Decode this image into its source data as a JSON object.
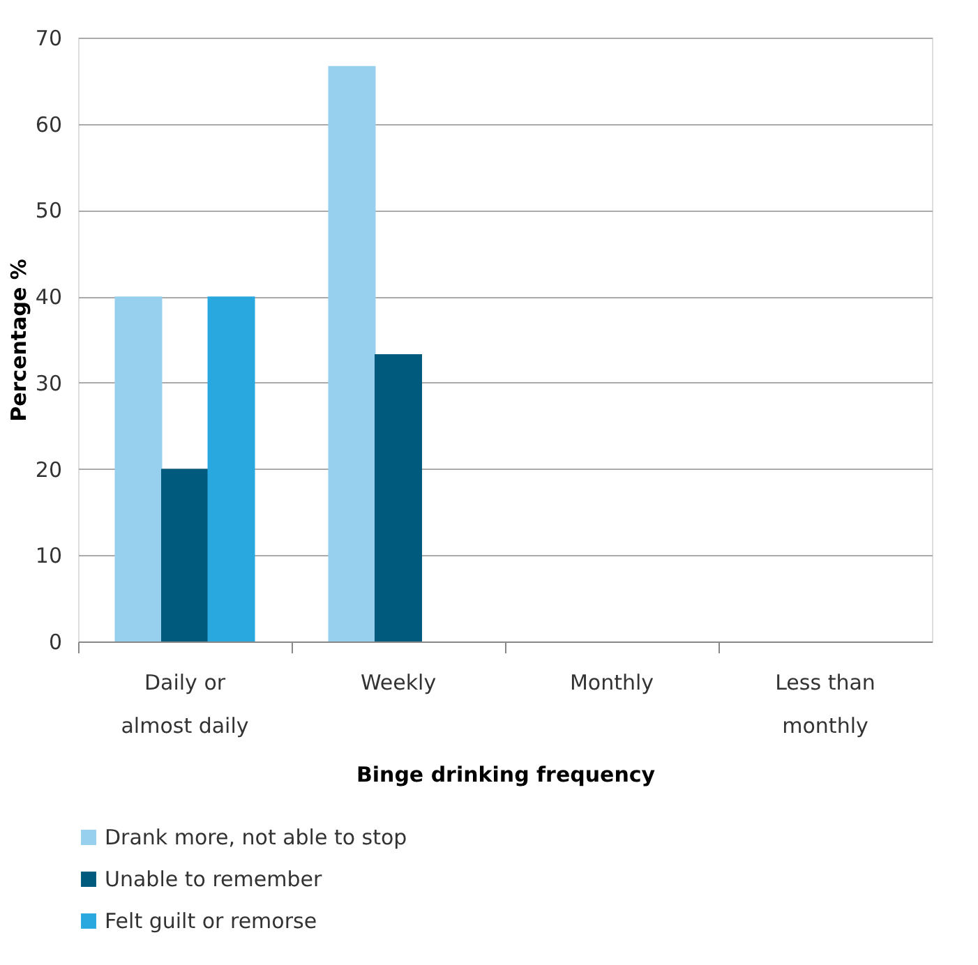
{
  "chart_data": {
    "type": "bar",
    "xlabel": "Binge drinking frequency",
    "ylabel": "Percentage %",
    "categories": [
      "Daily or\nalmost daily",
      "Weekly",
      "Monthly",
      "Less than\nmonthly"
    ],
    "series": [
      {
        "name": "Drank more, not able to stop",
        "color": "#97cfef",
        "values": [
          40,
          66.7,
          0,
          0
        ]
      },
      {
        "name": "Unable to remember",
        "color": "#005a7e",
        "values": [
          20,
          33.3,
          0,
          0
        ]
      },
      {
        "name": "Felt guilt or remorse",
        "color": "#29a8e0",
        "values": [
          40,
          0,
          0,
          0
        ]
      }
    ],
    "ylim": [
      0,
      70
    ],
    "yticks": [
      0,
      10,
      20,
      30,
      40,
      50,
      60,
      70
    ],
    "grid": "y",
    "legend": "bottom"
  }
}
